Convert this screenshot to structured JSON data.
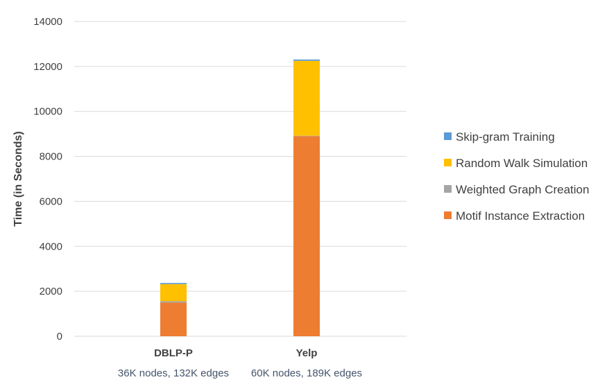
{
  "chart_data": {
    "type": "bar",
    "stacked": true,
    "title": "",
    "xlabel": "",
    "ylabel": "Time (in Seconds)",
    "ylim": [
      0,
      14000
    ],
    "yticks": [
      0,
      2000,
      4000,
      6000,
      8000,
      10000,
      12000,
      14000
    ],
    "grid": true,
    "legend_position": "right",
    "categories": [
      "DBLP-P",
      "Yelp"
    ],
    "category_sublabels": [
      "36K nodes, 132K edges",
      "60K nodes, 189K edges"
    ],
    "series": [
      {
        "name": "Motif Instance Extraction",
        "color": "#ed7d31",
        "values": [
          1500,
          8900
        ]
      },
      {
        "name": "Weighted Graph Creation",
        "color": "#a5a5a5",
        "values": [
          60,
          20
        ]
      },
      {
        "name": "Random Walk Simulation",
        "color": "#ffc000",
        "values": [
          760,
          3330
        ]
      },
      {
        "name": "Skip-gram Training",
        "color": "#5b9bd5",
        "values": [
          50,
          60
        ]
      }
    ],
    "legend_order": [
      "Skip-gram Training",
      "Random Walk Simulation",
      "Weighted Graph Creation",
      "Motif Instance Extraction"
    ]
  }
}
